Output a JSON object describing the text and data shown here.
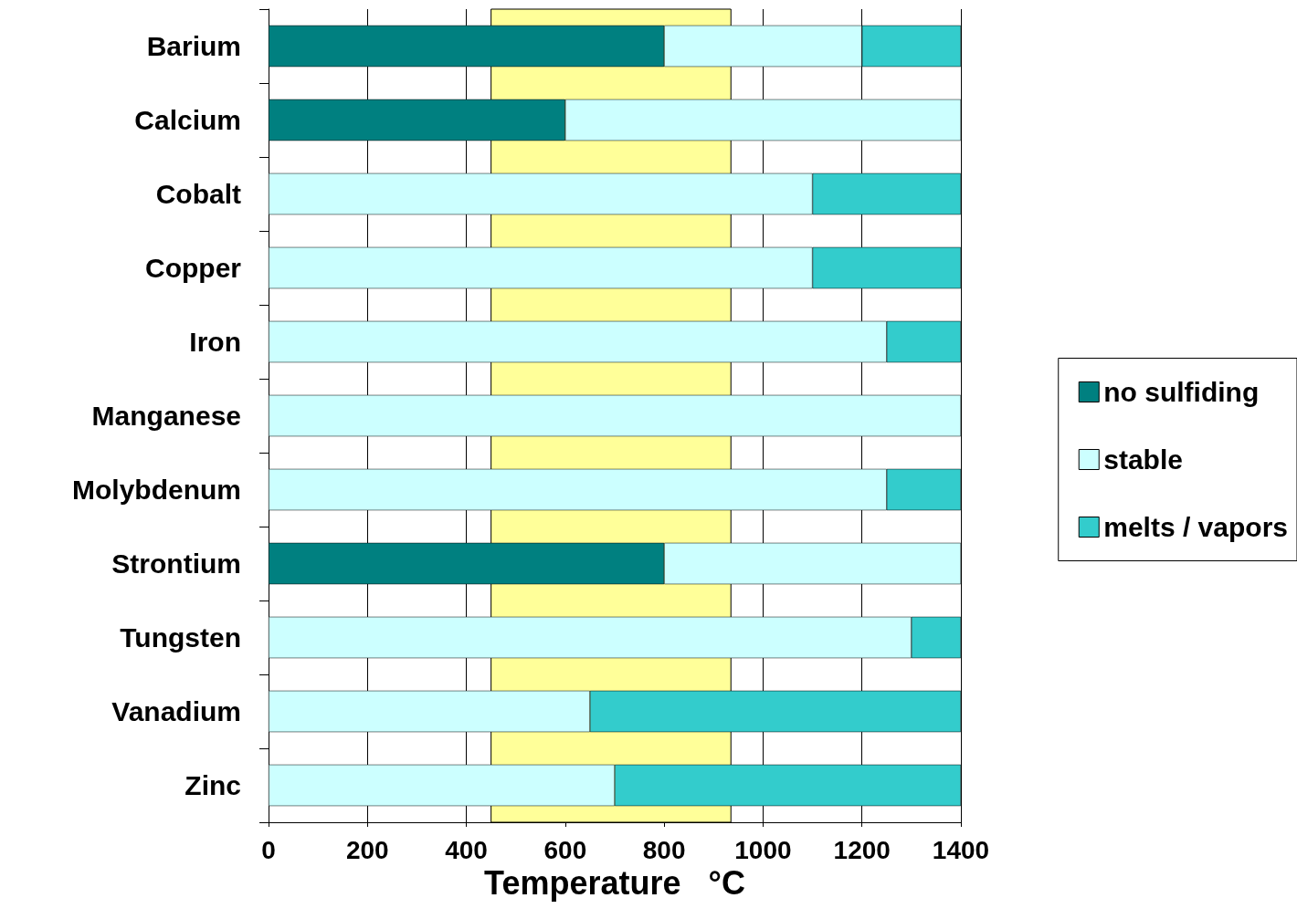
{
  "chart_data": {
    "type": "bar",
    "orientation": "horizontal",
    "stacked": true,
    "xlabel": "Temperature   °C",
    "categories": [
      "Barium",
      "Calcium",
      "Cobalt",
      "Copper",
      "Iron",
      "Manganese",
      "Molybdenum",
      "Strontium",
      "Tungsten",
      "Vanadium",
      "Zinc"
    ],
    "series": [
      {
        "name": "no sulfiding",
        "color": "#008080",
        "values": [
          800,
          600,
          0,
          0,
          0,
          0,
          0,
          800,
          0,
          0,
          0
        ]
      },
      {
        "name": "stable",
        "color": "#ccffff",
        "values": [
          400,
          800,
          1100,
          1100,
          1250,
          1400,
          1250,
          600,
          1300,
          650,
          700
        ]
      },
      {
        "name": "melts / vapors",
        "color": "#33cccc",
        "values": [
          200,
          0,
          300,
          300,
          150,
          0,
          150,
          0,
          100,
          750,
          700
        ]
      }
    ],
    "xlim": [
      0,
      1400
    ],
    "xticks": [
      0,
      200,
      400,
      600,
      800,
      1000,
      1200,
      1400
    ],
    "bands": [
      {
        "axis": "x",
        "from": 450,
        "to": 935,
        "color": "#ffff99"
      }
    ],
    "grid": "x",
    "legend": "right"
  }
}
